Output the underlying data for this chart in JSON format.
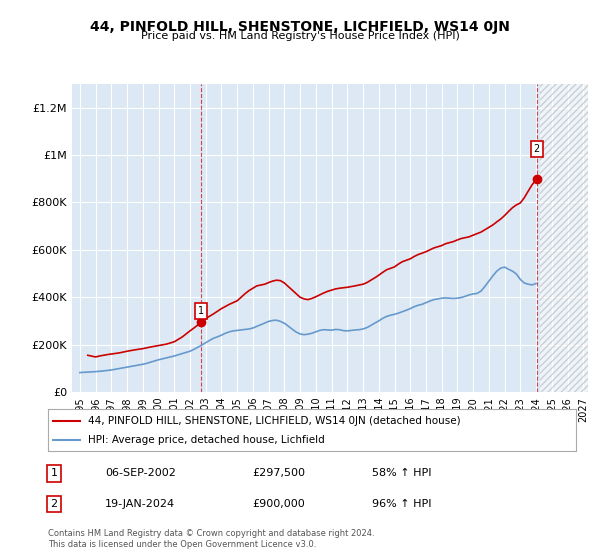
{
  "title": "44, PINFOLD HILL, SHENSTONE, LICHFIELD, WS14 0JN",
  "subtitle": "Price paid vs. HM Land Registry's House Price Index (HPI)",
  "ylabel": "",
  "ylim": [
    0,
    1300000
  ],
  "yticks": [
    0,
    200000,
    400000,
    600000,
    800000,
    1000000,
    1200000
  ],
  "ytick_labels": [
    "£0",
    "£200K",
    "£400K",
    "£600K",
    "£800K",
    "£1M",
    "£1.2M"
  ],
  "x_start_year": 1995,
  "x_end_year": 2027,
  "xtick_years": [
    1995,
    1996,
    1997,
    1998,
    1999,
    2000,
    2001,
    2002,
    2003,
    2004,
    2005,
    2006,
    2007,
    2008,
    2009,
    2010,
    2011,
    2012,
    2013,
    2014,
    2015,
    2016,
    2017,
    2018,
    2019,
    2020,
    2021,
    2022,
    2023,
    2024,
    2025,
    2026,
    2027
  ],
  "background_color": "#ffffff",
  "plot_bg_color": "#dce9f5",
  "grid_color": "#ffffff",
  "hpi_line_color": "#6699cc",
  "price_line_color": "#cc0000",
  "marker1_color": "#cc0000",
  "marker2_color": "#cc0000",
  "legend_label_price": "44, PINFOLD HILL, SHENSTONE, LICHFIELD, WS14 0JN (detached house)",
  "legend_label_hpi": "HPI: Average price, detached house, Lichfield",
  "annotation1_num": "1",
  "annotation1_date": "06-SEP-2002",
  "annotation1_price": "£297,500",
  "annotation1_hpi": "58% ↑ HPI",
  "annotation1_year": 2002.7,
  "annotation1_value": 297500,
  "annotation2_num": "2",
  "annotation2_date": "19-JAN-2024",
  "annotation2_price": "£900,000",
  "annotation2_hpi": "96% ↑ HPI",
  "annotation2_year": 2024.05,
  "annotation2_value": 900000,
  "footer_text": "Contains HM Land Registry data © Crown copyright and database right 2024.\nThis data is licensed under the Open Government Licence v3.0.",
  "hpi_data_x": [
    1995.0,
    1995.25,
    1995.5,
    1995.75,
    1996.0,
    1996.25,
    1996.5,
    1996.75,
    1997.0,
    1997.25,
    1997.5,
    1997.75,
    1998.0,
    1998.25,
    1998.5,
    1998.75,
    1999.0,
    1999.25,
    1999.5,
    1999.75,
    2000.0,
    2000.25,
    2000.5,
    2000.75,
    2001.0,
    2001.25,
    2001.5,
    2001.75,
    2002.0,
    2002.25,
    2002.5,
    2002.75,
    2003.0,
    2003.25,
    2003.5,
    2003.75,
    2004.0,
    2004.25,
    2004.5,
    2004.75,
    2005.0,
    2005.25,
    2005.5,
    2005.75,
    2006.0,
    2006.25,
    2006.5,
    2006.75,
    2007.0,
    2007.25,
    2007.5,
    2007.75,
    2008.0,
    2008.25,
    2008.5,
    2008.75,
    2009.0,
    2009.25,
    2009.5,
    2009.75,
    2010.0,
    2010.25,
    2010.5,
    2010.75,
    2011.0,
    2011.25,
    2011.5,
    2011.75,
    2012.0,
    2012.25,
    2012.5,
    2012.75,
    2013.0,
    2013.25,
    2013.5,
    2013.75,
    2014.0,
    2014.25,
    2014.5,
    2014.75,
    2015.0,
    2015.25,
    2015.5,
    2015.75,
    2016.0,
    2016.25,
    2016.5,
    2016.75,
    2017.0,
    2017.25,
    2017.5,
    2017.75,
    2018.0,
    2018.25,
    2018.5,
    2018.75,
    2019.0,
    2019.25,
    2019.5,
    2019.75,
    2020.0,
    2020.25,
    2020.5,
    2020.75,
    2021.0,
    2021.25,
    2021.5,
    2021.75,
    2022.0,
    2022.25,
    2022.5,
    2022.75,
    2023.0,
    2023.25,
    2023.5,
    2023.75,
    2024.0
  ],
  "hpi_data_y": [
    82000,
    83000,
    84000,
    85000,
    86000,
    87500,
    89000,
    91000,
    93000,
    96000,
    99000,
    102000,
    105000,
    108000,
    111000,
    114000,
    117000,
    121000,
    126000,
    131000,
    136000,
    140000,
    144000,
    148000,
    152000,
    157000,
    162000,
    167000,
    172000,
    180000,
    189000,
    198000,
    208000,
    218000,
    227000,
    233000,
    240000,
    248000,
    254000,
    258000,
    260000,
    262000,
    264000,
    266000,
    270000,
    277000,
    284000,
    291000,
    298000,
    302000,
    303000,
    298000,
    290000,
    278000,
    265000,
    253000,
    245000,
    242000,
    244000,
    248000,
    254000,
    260000,
    263000,
    262000,
    261000,
    264000,
    263000,
    259000,
    258000,
    260000,
    262000,
    263000,
    266000,
    272000,
    281000,
    291000,
    300000,
    311000,
    319000,
    324000,
    328000,
    333000,
    339000,
    345000,
    352000,
    360000,
    366000,
    370000,
    377000,
    384000,
    390000,
    393000,
    396000,
    397000,
    396000,
    395000,
    396000,
    399000,
    404000,
    410000,
    414000,
    416000,
    426000,
    446000,
    468000,
    490000,
    510000,
    523000,
    527000,
    518000,
    510000,
    498000,
    475000,
    460000,
    455000,
    452000,
    458000
  ],
  "price_data_x": [
    1995.5,
    1996.0,
    1996.25,
    1996.75,
    1997.5,
    1998.0,
    1998.5,
    1999.0,
    1999.5,
    2000.0,
    2000.5,
    2001.0,
    2001.25,
    2001.5,
    2001.75,
    2002.0,
    2002.25,
    2002.5,
    2002.75,
    2003.0,
    2003.5,
    2004.0,
    2004.5,
    2005.0,
    2005.25,
    2005.5,
    2005.75,
    2006.0,
    2006.25,
    2006.75,
    2007.0,
    2007.25,
    2007.5,
    2007.75,
    2008.0,
    2008.25,
    2008.5,
    2008.75,
    2009.0,
    2009.25,
    2009.5,
    2009.75,
    2010.0,
    2010.25,
    2010.5,
    2010.75,
    2011.0,
    2011.25,
    2011.5,
    2011.75,
    2012.0,
    2012.25,
    2012.5,
    2013.0,
    2013.25,
    2013.5,
    2013.75,
    2014.0,
    2014.25,
    2014.5,
    2015.0,
    2015.25,
    2015.5,
    2016.0,
    2016.25,
    2016.5,
    2016.75,
    2017.0,
    2017.25,
    2017.5,
    2018.0,
    2018.25,
    2018.75,
    2019.0,
    2019.25,
    2019.75,
    2020.0,
    2020.5,
    2020.75,
    2021.0,
    2021.25,
    2021.5,
    2021.75,
    2022.0,
    2022.25,
    2022.5,
    2022.75,
    2023.0,
    2023.25,
    2023.5,
    2023.75,
    2024.05
  ],
  "price_data_y": [
    155000,
    148000,
    152000,
    158000,
    165000,
    172000,
    178000,
    183000,
    190000,
    196000,
    202000,
    212000,
    222000,
    232000,
    245000,
    258000,
    270000,
    283000,
    297500,
    310000,
    330000,
    352000,
    370000,
    385000,
    400000,
    415000,
    428000,
    438000,
    448000,
    455000,
    462000,
    468000,
    472000,
    470000,
    460000,
    445000,
    430000,
    415000,
    400000,
    393000,
    390000,
    395000,
    402000,
    410000,
    418000,
    425000,
    430000,
    435000,
    438000,
    440000,
    442000,
    445000,
    448000,
    455000,
    462000,
    472000,
    482000,
    493000,
    505000,
    516000,
    528000,
    540000,
    550000,
    562000,
    572000,
    580000,
    586000,
    592000,
    600000,
    608000,
    618000,
    626000,
    635000,
    642000,
    648000,
    655000,
    662000,
    675000,
    685000,
    695000,
    705000,
    718000,
    730000,
    745000,
    762000,
    778000,
    790000,
    798000,
    820000,
    848000,
    875000,
    900000
  ]
}
